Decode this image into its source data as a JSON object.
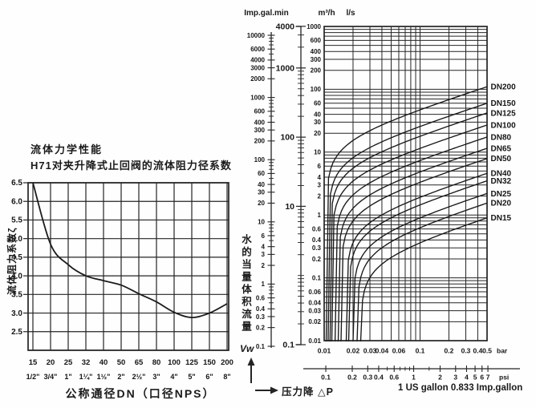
{
  "left_chart": {
    "title_line1": "流体力学性能",
    "title_line2": "H71对夹升降式止回阀的流体阻力径系数",
    "y_axis_label": "流体阻力系数ζ",
    "x_axis_label": "公称通径DN（口径NPS）",
    "y_ticks": [
      "6.5",
      "6.0",
      "5.5",
      "5.0",
      "4.5",
      "4.0",
      "3.5",
      "3.0",
      "2.5"
    ],
    "dn_ticks": [
      "15",
      "20",
      "25",
      "32",
      "40",
      "50",
      "65",
      "80",
      "100",
      "125",
      "150",
      "200"
    ],
    "nps_ticks": [
      "1/2\"",
      "3/4\"",
      "1\"",
      "1¼\"",
      "1½\"",
      "2\"",
      "2½\"",
      "3\"",
      "4\"",
      "5\"",
      "6\"",
      "8\""
    ],
    "chart_data": {
      "type": "line",
      "categories": [
        15,
        20,
        25,
        32,
        40,
        50,
        65,
        80,
        100,
        125,
        150,
        200
      ],
      "values": [
        6.5,
        4.85,
        4.3,
        4.0,
        3.87,
        3.75,
        3.52,
        3.3,
        3.02,
        2.88,
        3.0,
        3.25
      ],
      "xlabel": "公称通径DN（口径NPS）",
      "ylabel": "流体阻力系数ζ",
      "ylim": [
        2.0,
        6.5
      ],
      "grid": true
    }
  },
  "right_chart": {
    "header_imp": "Imp.gal.min",
    "header_m3h": "m³/h",
    "header_ls": "l/s",
    "imp_scale_labels": [
      "10000",
      "6000",
      "4000",
      "3000",
      "2000",
      "1000",
      "600",
      "400",
      "300",
      "200",
      "100",
      "60",
      "40",
      "30",
      "20",
      "10",
      "6",
      "4",
      "3",
      "2",
      "1",
      "0.6",
      "0.4",
      "0.3",
      "0.2",
      "0.1"
    ],
    "m3h_scale_labels": [
      "4000",
      "1000",
      "100",
      "10",
      "0.1"
    ],
    "ls_axis_labels": [
      "1000",
      "600",
      "400",
      "300",
      "200",
      "100",
      "60",
      "40",
      "30",
      "20",
      "10",
      "6",
      "4",
      "3",
      "2",
      "1",
      "0.6",
      "0.4",
      "0.3",
      "0.2",
      "0.1",
      "0.06",
      "0.04",
      "0.03",
      "0.02",
      "0.01"
    ],
    "bar_axis_labels": [
      "0.01",
      "0.02",
      "0.03",
      "0.04",
      "0.06",
      "0.1",
      "0.2",
      "0.3",
      "0.4",
      "0.5"
    ],
    "bar_unit": "bar",
    "psi_axis_labels": [
      "0.1",
      "0.2",
      "0.3",
      "0.4",
      "0.6",
      "1",
      "2",
      "3",
      "4",
      "5",
      "6",
      "7"
    ],
    "psi_unit": "psi",
    "flow_label_cn": "水的当量体积流量",
    "flow_symbol": "Vw",
    "pressure_label": "压力降 △P",
    "gallon_note": "1 US gallon 0.833 Imp.gallon",
    "chart_data": {
      "type": "line",
      "log_log": true,
      "xlabel": "压力降 △P (bar)",
      "ylabel": "水的当量体积流量 Vw (l/s)",
      "xlim": [
        0.01,
        0.5
      ],
      "ylim": [
        0.01,
        1000
      ],
      "grid": true,
      "series": [
        {
          "name": "DN200",
          "cracking_bar": 0.0105,
          "q_at_0p5bar_ls": 110
        },
        {
          "name": "DN150",
          "cracking_bar": 0.011,
          "q_at_0p5bar_ls": 60
        },
        {
          "name": "DN125",
          "cracking_bar": 0.0115,
          "q_at_0p5bar_ls": 42
        },
        {
          "name": "DN100",
          "cracking_bar": 0.012,
          "q_at_0p5bar_ls": 27
        },
        {
          "name": "DN80",
          "cracking_bar": 0.013,
          "q_at_0p5bar_ls": 17.4
        },
        {
          "name": "DN65",
          "cracking_bar": 0.014,
          "q_at_0p5bar_ls": 11.5
        },
        {
          "name": "DN50",
          "cracking_bar": 0.015,
          "q_at_0p5bar_ls": 7.9
        },
        {
          "name": "DN40",
          "cracking_bar": 0.017,
          "q_at_0p5bar_ls": 4.6
        },
        {
          "name": "DN32",
          "cracking_bar": 0.018,
          "q_at_0p5bar_ls": 3.5
        },
        {
          "name": "DN25",
          "cracking_bar": 0.02,
          "q_at_0p5bar_ls": 2.2
        },
        {
          "name": "DN20",
          "cracking_bar": 0.022,
          "q_at_0p5bar_ls": 1.55
        },
        {
          "name": "DN15",
          "cracking_bar": 0.024,
          "q_at_0p5bar_ls": 0.9
        }
      ]
    }
  }
}
